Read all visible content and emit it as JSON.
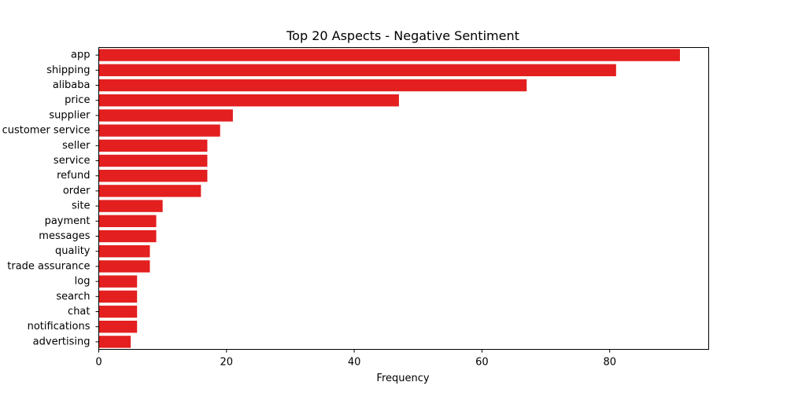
{
  "chart_data": {
    "type": "bar",
    "orientation": "horizontal",
    "title": "Top 20 Aspects - Negative Sentiment",
    "xlabel": "Frequency",
    "ylabel": "",
    "xlim": [
      0,
      95.5
    ],
    "xticks": [
      0,
      20,
      40,
      60,
      80
    ],
    "grid": false,
    "bar_color": "#e31f1f",
    "categories": [
      "app",
      "shipping",
      "alibaba",
      "price",
      "supplier",
      "customer service",
      "seller",
      "service",
      "refund",
      "order",
      "site",
      "payment",
      "messages",
      "quality",
      "trade assurance",
      "log",
      "search",
      "chat",
      "notifications",
      "advertising"
    ],
    "values": [
      91,
      81,
      67,
      47,
      21,
      19,
      17,
      17,
      17,
      16,
      10,
      9,
      9,
      8,
      8,
      6,
      6,
      6,
      6,
      5
    ]
  }
}
